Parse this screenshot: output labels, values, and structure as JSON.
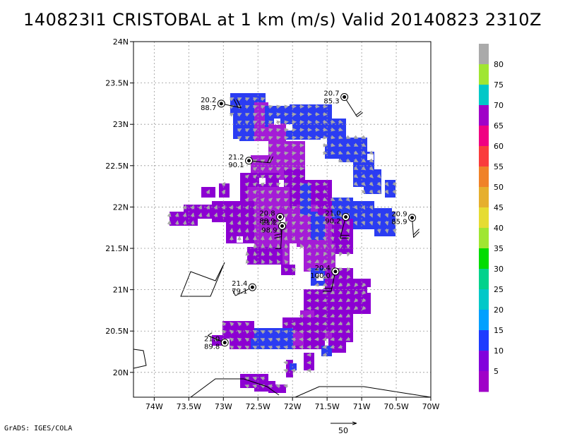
{
  "title": "140823I1 CRISTOBAL at 1 km (m/s) Valid 20140823 2310Z",
  "footer": "GrADS: IGES/COLA",
  "colors": {
    "purple": "#8c00d2",
    "magenta": "#a41cd6",
    "blue": "#2b3cf2",
    "vector": "#a8a8a8"
  },
  "chart_data": {
    "type": "heatmap",
    "title": "140823I1 CRISTOBAL at 1 km (m/s) Valid 20140823 2310Z",
    "x_ticks": [
      "74W",
      "73.5W",
      "73W",
      "72.5W",
      "72W",
      "71.5W",
      "71W",
      "70.5W",
      "70W"
    ],
    "y_ticks": [
      "20N",
      "20.5N",
      "21N",
      "21.5N",
      "22N",
      "22.5N",
      "23N",
      "23.5N",
      "24N"
    ],
    "xlim": [
      -74.3,
      -70.0
    ],
    "ylim": [
      19.7,
      24.0
    ],
    "grid": true,
    "colorbar": {
      "labels": [
        "5",
        "10",
        "15",
        "20",
        "25",
        "30",
        "35",
        "40",
        "45",
        "50",
        "55",
        "60",
        "65",
        "70",
        "75",
        "80"
      ],
      "colors": [
        "#a000c8",
        "#8200dc",
        "#1e3cff",
        "#00a0ff",
        "#00c8c8",
        "#00d28c",
        "#00dc00",
        "#a0e632",
        "#e6dc32",
        "#e6af2d",
        "#f08228",
        "#fa3c3c",
        "#f00082",
        "#a000c8",
        "#00c8c8",
        "#a0e632",
        "#aaaaaa"
      ]
    },
    "observations": [
      {
        "lon": -73.03,
        "lat": 23.25,
        "label_a": "20.2",
        "label_b": "88.7"
      },
      {
        "lon": -71.25,
        "lat": 23.33,
        "label_a": "20.7",
        "label_b": "85.3"
      },
      {
        "lon": -72.63,
        "lat": 22.56,
        "label_a": "21.2",
        "label_b": "90.1"
      },
      {
        "lon": -72.18,
        "lat": 21.88,
        "label_a": "20.8",
        "label_b": "88.9"
      },
      {
        "lon": -72.15,
        "lat": 21.77,
        "label_a": "21.2",
        "label_b": "98.9"
      },
      {
        "lon": -71.23,
        "lat": 21.88,
        "label_a": "21.0",
        "label_b": "90.2"
      },
      {
        "lon": -70.27,
        "lat": 21.87,
        "label_a": "20.9",
        "label_b": "85.9"
      },
      {
        "lon": -71.38,
        "lat": 21.22,
        "label_a": "20.4",
        "label_b": "100.0"
      },
      {
        "lon": -72.58,
        "lat": 21.03,
        "label_a": "21.4",
        "label_b": "79.1"
      },
      {
        "lon": -72.98,
        "lat": 20.36,
        "label_a": "21.0",
        "label_b": "89.8"
      }
    ],
    "reference_vector": {
      "label": "50"
    }
  }
}
